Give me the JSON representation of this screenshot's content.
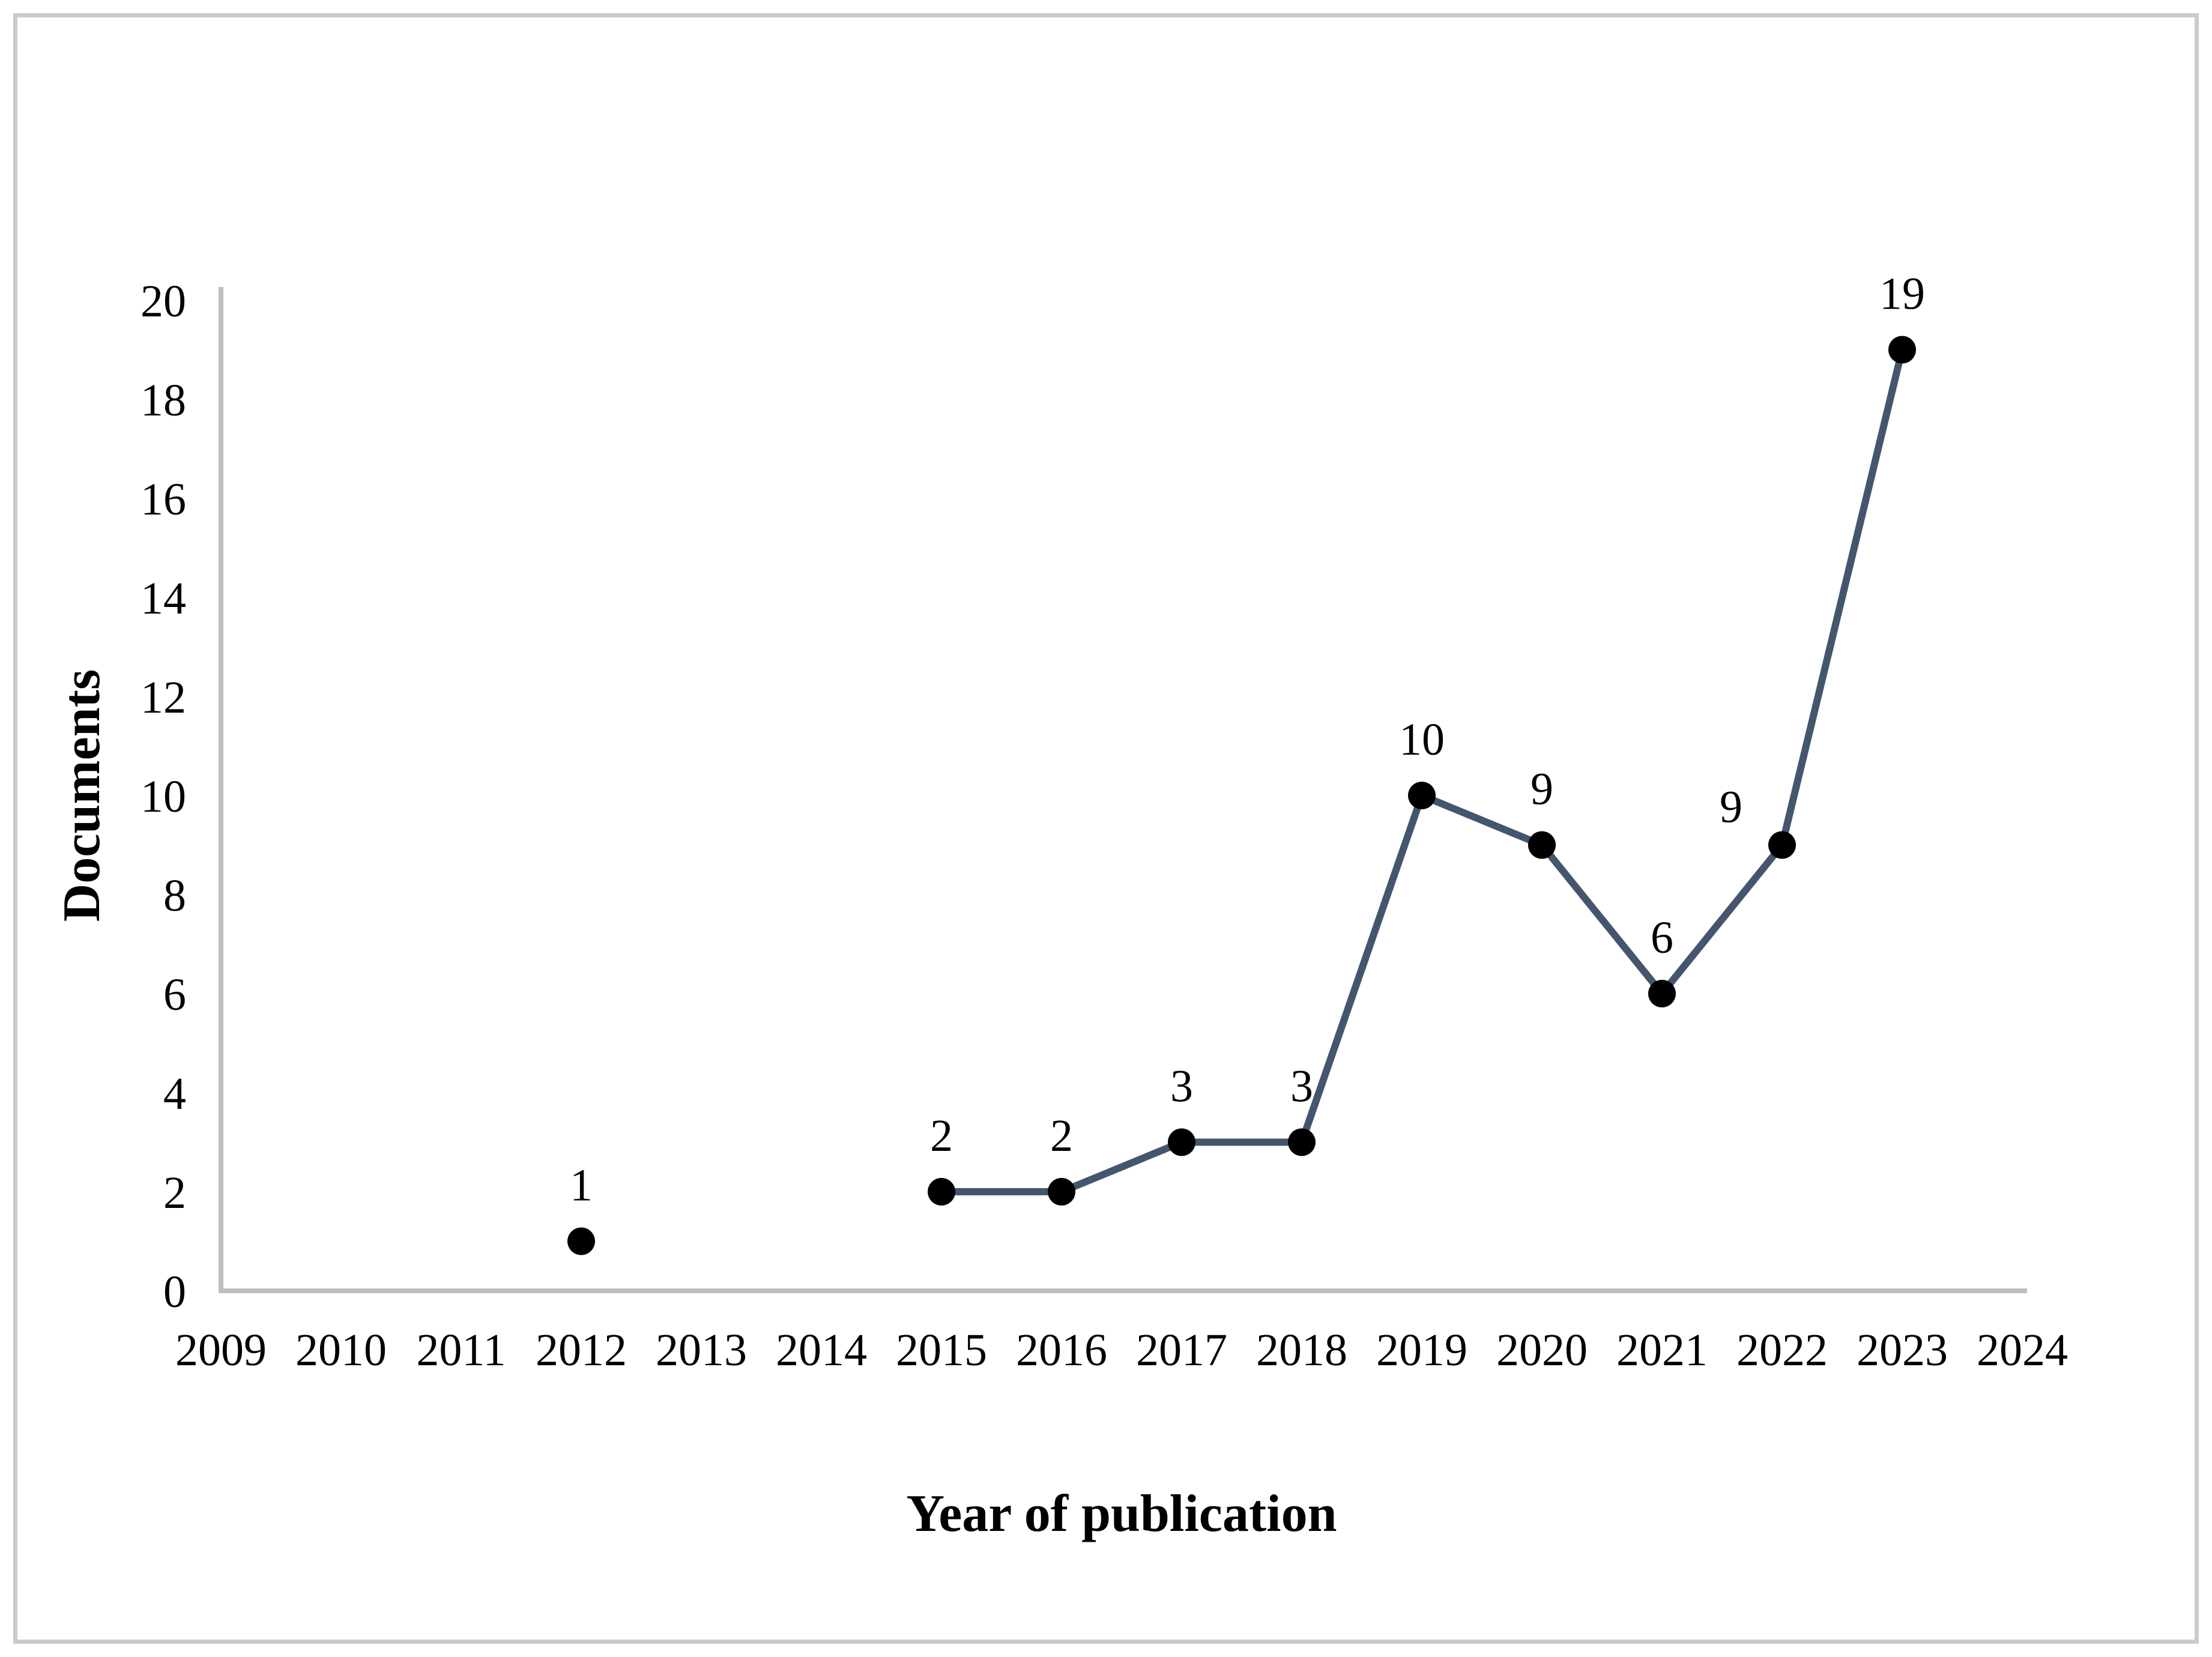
{
  "figure": {
    "background": "#ffffff",
    "border_color": "#cbcbcb"
  },
  "chart_data": {
    "type": "line",
    "title": "",
    "xlabel": "Year of publication",
    "ylabel": "Documents",
    "x_ticks": [
      "2009",
      "2010",
      "2011",
      "2012",
      "2013",
      "2014",
      "2015",
      "2016",
      "2017",
      "2018",
      "2019",
      "2020",
      "2021",
      "2022",
      "2023",
      "2024"
    ],
    "x_range": [
      2009,
      2024
    ],
    "ylim": [
      0,
      20
    ],
    "ytick_step": 2,
    "grid": false,
    "legend": "none",
    "series": [
      {
        "name": "Documents",
        "points": [
          {
            "year": 2012,
            "value": 1
          },
          {
            "year": 2015,
            "value": 2
          },
          {
            "year": 2016,
            "value": 2
          },
          {
            "year": 2017,
            "value": 3
          },
          {
            "year": 2018,
            "value": 3
          },
          {
            "year": 2019,
            "value": 10
          },
          {
            "year": 2020,
            "value": 9
          },
          {
            "year": 2021,
            "value": 6
          },
          {
            "year": 2022,
            "value": 9,
            "label_dx": -85,
            "label_dy": 30
          },
          {
            "year": 2023,
            "value": 19
          }
        ],
        "note": "points in non-consecutive years are not connected (gap 2013-2014)"
      }
    ],
    "colors": {
      "line": "#44566E",
      "marker": "#000000",
      "axis": "#BFBFBF",
      "text": "#000000"
    }
  }
}
